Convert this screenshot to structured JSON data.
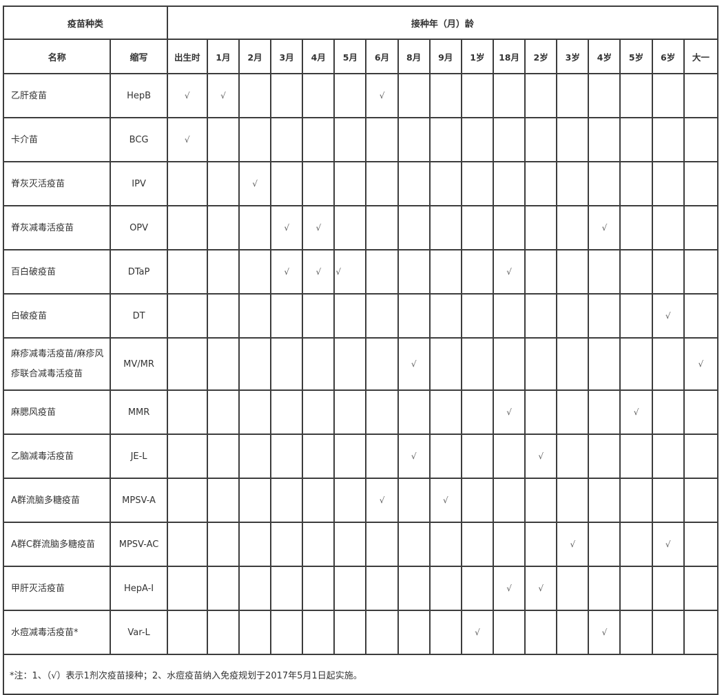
{
  "table": {
    "header": {
      "vaccine_type": "疫苗种类",
      "age_title": "接种年（月）龄",
      "name": "名称",
      "abbr": "缩写",
      "ages": [
        "出生时",
        "1月",
        "2月",
        "3月",
        "4月",
        "5月",
        "6月",
        "8月",
        "9月",
        "1岁",
        "18月",
        "2岁",
        "3岁",
        "4岁",
        "5岁",
        "6岁",
        "大一"
      ]
    },
    "check_symbol": "√",
    "rows": [
      {
        "name": "乙肝疫苗",
        "abbr": "HepB",
        "checks": [
          0,
          1,
          6
        ]
      },
      {
        "name": "卡介苗",
        "abbr": "BCG",
        "checks": [
          0
        ]
      },
      {
        "name": "脊灰灭活疫苗",
        "abbr": "IPV",
        "checks": [
          2
        ]
      },
      {
        "name": "脊灰减毒活疫苗",
        "abbr": "OPV",
        "checks": [
          3,
          4,
          13
        ]
      },
      {
        "name": "百白破疫苗",
        "abbr": "DTaP",
        "checks": [
          3,
          4,
          5,
          10
        ],
        "checks_at_left_edge": [
          5
        ]
      },
      {
        "name": "白破疫苗",
        "abbr": "DT",
        "checks": [
          15
        ]
      },
      {
        "name": "麻疹减毒活疫苗/麻疹风疹联合减毒活疫苗",
        "abbr": "MV/MR",
        "checks": [
          7,
          16
        ]
      },
      {
        "name": "麻腮风疫苗",
        "abbr": "MMR",
        "checks": [
          10,
          14
        ]
      },
      {
        "name": "乙脑减毒活疫苗",
        "abbr": "JE-L",
        "checks": [
          7,
          11
        ]
      },
      {
        "name": "A群流脑多糖疫苗",
        "abbr": "MPSV-A",
        "checks": [
          6,
          8
        ]
      },
      {
        "name": "A群C群流脑多糖疫苗",
        "abbr": "MPSV-AC",
        "checks": [
          12,
          15
        ]
      },
      {
        "name": "甲肝灭活疫苗",
        "abbr": "HepA-I",
        "checks": [
          10,
          11
        ]
      },
      {
        "name": "水痘减毒活疫苗*",
        "abbr": "Var-L",
        "checks": [
          9,
          13
        ]
      }
    ],
    "footnote": "*注：1、（√）表示1剂次疫苗接种；2、水痘疫苗纳入免疫规划于2017年5月1日起实施。",
    "colors": {
      "border": "#3c3c3c",
      "text": "#333333",
      "check": "#5a5a5a",
      "background": "#ffffff"
    },
    "layout_counts": {
      "age_columns": 17,
      "total_columns": 19,
      "vaccine_rows": 13
    }
  }
}
